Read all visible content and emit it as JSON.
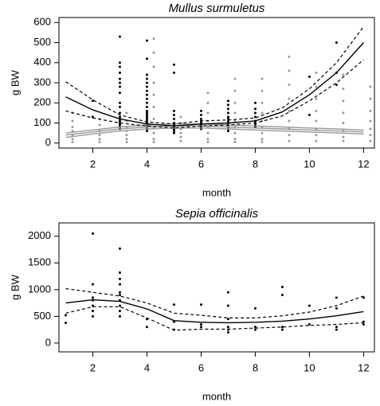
{
  "chart_data": [
    {
      "type": "scatter",
      "title": "Mullus surmuletus",
      "x_label": "month",
      "y_label": "g BW",
      "xlim": [
        0.75,
        12.4
      ],
      "ylim": [
        -25,
        625
      ],
      "xticks": [
        2,
        4,
        6,
        8,
        10,
        12
      ],
      "yticks": [
        0,
        100,
        200,
        300,
        400,
        500,
        600
      ],
      "series": [
        {
          "color": "#000000",
          "style": "points",
          "x": [
            2,
            2,
            3,
            3,
            3,
            3,
            3,
            3,
            3,
            3,
            3,
            3,
            3,
            3,
            3,
            3,
            3,
            3,
            3,
            3,
            4,
            4,
            4,
            4,
            4,
            4,
            4,
            4,
            4,
            4,
            4,
            4,
            4,
            4,
            4,
            4,
            4,
            4,
            4,
            4,
            4,
            4,
            5,
            5,
            5,
            5,
            5,
            5,
            5,
            5,
            5,
            5,
            5,
            6,
            6,
            6,
            6,
            6,
            6,
            6,
            6,
            7,
            7,
            7,
            7,
            7,
            7,
            7,
            7,
            7,
            7,
            7,
            7,
            8,
            8,
            8,
            8,
            8,
            8,
            8,
            8,
            10,
            10,
            11,
            11,
            11
          ],
          "values": [
            210,
            130,
            530,
            400,
            380,
            350,
            320,
            300,
            280,
            250,
            200,
            180,
            150,
            130,
            120,
            110,
            100,
            90,
            80,
            70,
            510,
            420,
            340,
            320,
            300,
            280,
            260,
            240,
            220,
            200,
            180,
            160,
            150,
            140,
            130,
            120,
            110,
            100,
            90,
            80,
            70,
            60,
            390,
            350,
            160,
            140,
            120,
            100,
            90,
            80,
            70,
            60,
            50,
            160,
            140,
            120,
            110,
            100,
            90,
            80,
            70,
            210,
            190,
            170,
            150,
            130,
            120,
            110,
            100,
            90,
            80,
            70,
            60,
            200,
            170,
            150,
            130,
            110,
            100,
            90,
            80,
            330,
            140,
            500,
            350,
            290
          ]
        },
        {
          "color": "#999999",
          "style": "points",
          "x": [
            1.25,
            1.25,
            1.25,
            1.25,
            1.25,
            1.25,
            1.25,
            2.25,
            2.25,
            2.25,
            2.25,
            2.25,
            2.25,
            3.25,
            3.25,
            3.25,
            3.25,
            3.25,
            3.25,
            3.25,
            4.25,
            4.25,
            4.25,
            4.25,
            4.25,
            4.25,
            4.25,
            4.25,
            4.25,
            4.25,
            4.25,
            5.25,
            5.25,
            5.25,
            5.25,
            5.25,
            5.25,
            6.25,
            6.25,
            6.25,
            6.25,
            6.25,
            6.25,
            6.25,
            6.25,
            7.25,
            7.25,
            7.25,
            7.25,
            7.25,
            7.25,
            7.25,
            7.25,
            7.25,
            8.25,
            8.25,
            8.25,
            8.25,
            8.25,
            8.25,
            8.25,
            8.25,
            8.25,
            9.25,
            9.25,
            9.25,
            9.25,
            9.25,
            9.25,
            9.25,
            9.25,
            9.25,
            10.25,
            10.25,
            10.25,
            10.25,
            10.25,
            10.25,
            10.25,
            10.25,
            11.25,
            11.25,
            11.25,
            11.25,
            11.25,
            11.25,
            11.25,
            11.25,
            12.25,
            12.25,
            12.25,
            12.25,
            12.25,
            12.25,
            12.25
          ],
          "values": [
            150,
            110,
            80,
            60,
            40,
            20,
            5,
            120,
            90,
            60,
            40,
            20,
            5,
            150,
            110,
            80,
            60,
            40,
            20,
            5,
            520,
            450,
            380,
            300,
            240,
            180,
            120,
            80,
            50,
            20,
            5,
            130,
            100,
            70,
            50,
            30,
            10,
            250,
            200,
            150,
            110,
            80,
            50,
            20,
            5,
            320,
            260,
            200,
            150,
            110,
            80,
            50,
            20,
            5,
            320,
            260,
            200,
            150,
            110,
            80,
            50,
            20,
            5,
            430,
            360,
            290,
            220,
            160,
            110,
            70,
            40,
            10,
            350,
            280,
            220,
            160,
            110,
            70,
            40,
            10,
            340,
            270,
            210,
            150,
            100,
            60,
            30,
            10,
            280,
            220,
            160,
            110,
            70,
            40,
            10
          ]
        },
        {
          "color": "#999999",
          "style": "line",
          "dash": false,
          "x": [
            1,
            2,
            3,
            4,
            5,
            6,
            7,
            8,
            9,
            10,
            11,
            12
          ],
          "values": [
            40,
            55,
            70,
            80,
            85,
            85,
            80,
            75,
            70,
            65,
            60,
            55
          ]
        },
        {
          "color": "#999999",
          "style": "line",
          "dash": false,
          "x": [
            1,
            2,
            3,
            4,
            5,
            6,
            7,
            8,
            9,
            10,
            11,
            12
          ],
          "values": [
            50,
            65,
            80,
            90,
            95,
            95,
            90,
            85,
            80,
            75,
            70,
            65
          ]
        },
        {
          "color": "#999999",
          "style": "line",
          "dash": false,
          "x": [
            1,
            2,
            3,
            4,
            5,
            6,
            7,
            8,
            9,
            10,
            11,
            12
          ],
          "values": [
            28,
            45,
            60,
            70,
            75,
            75,
            70,
            65,
            60,
            55,
            50,
            45
          ]
        },
        {
          "color": "#000000",
          "style": "line",
          "dash": false,
          "x": [
            1,
            2,
            3,
            4,
            5,
            6,
            7,
            8,
            9,
            10,
            11,
            12
          ],
          "values": [
            230,
            165,
            120,
            95,
            85,
            95,
            100,
            110,
            155,
            240,
            350,
            500
          ]
        },
        {
          "color": "#000000",
          "style": "line",
          "dash": true,
          "x": [
            1,
            2,
            3,
            4,
            5,
            6,
            7,
            8,
            9,
            10,
            11,
            12
          ],
          "values": [
            305,
            215,
            140,
            105,
            95,
            110,
            115,
            125,
            175,
            270,
            400,
            580
          ]
        },
        {
          "color": "#000000",
          "style": "line",
          "dash": true,
          "x": [
            1,
            2,
            3,
            4,
            5,
            6,
            7,
            8,
            9,
            10,
            11,
            12
          ],
          "values": [
            160,
            125,
            100,
            85,
            75,
            85,
            90,
            100,
            135,
            210,
            300,
            415
          ]
        }
      ]
    },
    {
      "type": "scatter",
      "title": "Sepia officinalis",
      "x_label": "month",
      "y_label": "g BW",
      "xlim": [
        0.75,
        12.4
      ],
      "ylim": [
        -165,
        2250
      ],
      "xticks": [
        2,
        4,
        6,
        8,
        10,
        12
      ],
      "yticks": [
        0,
        500,
        1000,
        1500,
        2000
      ],
      "series": [
        {
          "color": "#000000",
          "style": "points",
          "x": [
            1,
            1,
            2,
            2,
            2,
            2,
            2,
            2,
            2,
            3,
            3,
            3,
            3,
            3,
            3,
            3,
            3,
            3,
            3,
            4,
            4,
            5,
            5,
            5,
            6,
            6,
            6,
            7,
            7,
            7,
            7,
            7,
            7,
            8,
            8,
            8,
            9,
            9,
            9,
            9,
            10,
            10,
            11,
            11,
            11,
            11,
            12,
            12,
            12
          ],
          "values": [
            520,
            380,
            2050,
            1100,
            850,
            800,
            700,
            600,
            500,
            1770,
            1320,
            1200,
            1100,
            950,
            900,
            800,
            700,
            600,
            500,
            450,
            300,
            720,
            400,
            250,
            720,
            350,
            300,
            950,
            700,
            450,
            300,
            250,
            200,
            650,
            300,
            250,
            1050,
            900,
            300,
            250,
            700,
            350,
            850,
            650,
            300,
            250,
            850,
            400,
            350
          ]
        },
        {
          "color": "#000000",
          "style": "line",
          "dash": false,
          "x": [
            1,
            2,
            3,
            4,
            5,
            6,
            7,
            8,
            9,
            10,
            11,
            12
          ],
          "values": [
            750,
            810,
            780,
            640,
            420,
            390,
            380,
            390,
            410,
            450,
            510,
            590
          ]
        },
        {
          "color": "#000000",
          "style": "line",
          "dash": true,
          "x": [
            1,
            2,
            3,
            4,
            5,
            6,
            7,
            8,
            9,
            10,
            11,
            12
          ],
          "values": [
            1020,
            950,
            880,
            750,
            560,
            520,
            470,
            470,
            510,
            580,
            700,
            880
          ]
        },
        {
          "color": "#000000",
          "style": "line",
          "dash": true,
          "x": [
            1,
            2,
            3,
            4,
            5,
            6,
            7,
            8,
            9,
            10,
            11,
            12
          ],
          "values": [
            560,
            680,
            680,
            470,
            240,
            260,
            260,
            280,
            300,
            330,
            350,
            380
          ]
        }
      ]
    }
  ]
}
